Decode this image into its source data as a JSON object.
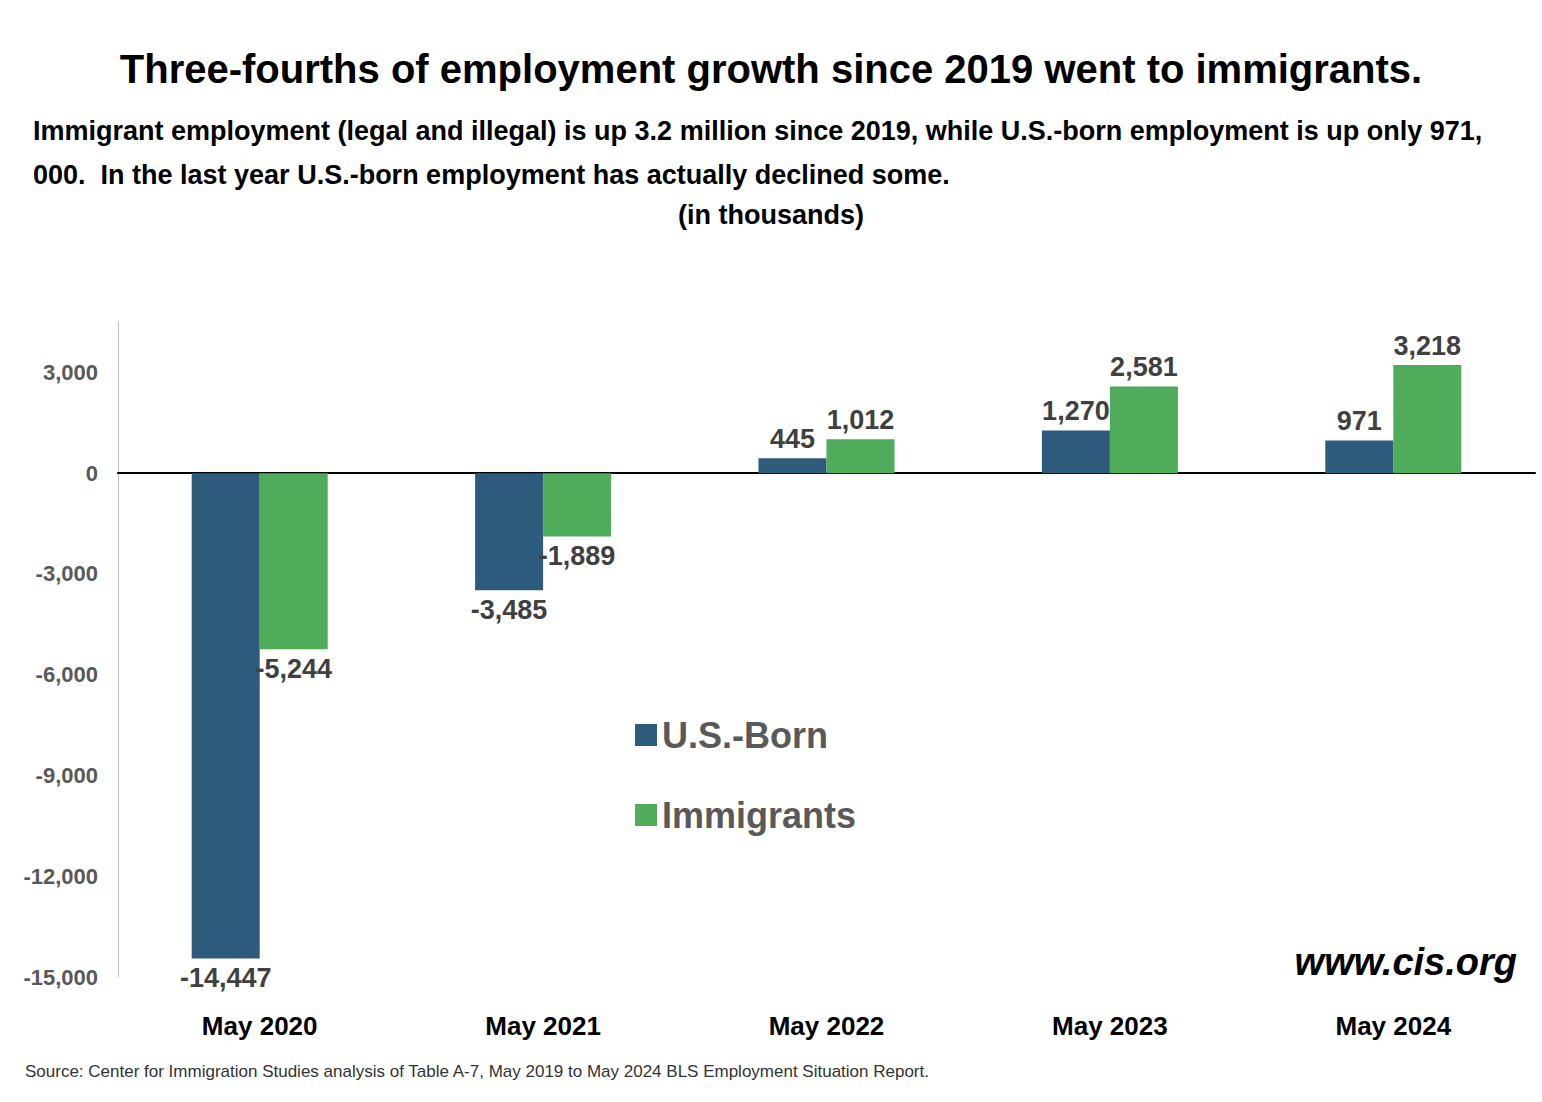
{
  "chart_data": {
    "type": "bar",
    "title": "Three-fourths of employment growth since 2019 went to immigrants.",
    "subtitle": "Immigrant employment (legal and illegal) is up 3.2 million since 2019, while U.S.-born employment is up only 971,000.  In the last year U.S.-born employment has actually declined some.",
    "note": "(in thousands)",
    "source": "Source: Center for Immigration Studies analysis of Table A-7, May 2019 to May 2024 BLS Employment Situation Report.",
    "annotations": [
      "www.cis.org"
    ],
    "categories": [
      "May 2020",
      "May 2021",
      "May 2022",
      "May 2023",
      "May 2024"
    ],
    "series": [
      {
        "name": "U.S.-Born",
        "color": "#2e5a7b",
        "values": [
          -14447,
          -3485,
          445,
          1270,
          971
        ],
        "value_labels": [
          "-14,447",
          "-3,485",
          "445",
          "1,270",
          "971"
        ]
      },
      {
        "name": "Immigrants",
        "color": "#4eac5b",
        "values": [
          -5244,
          -1889,
          1012,
          2581,
          3218
        ],
        "value_labels": [
          "-5,244",
          "-1,889",
          "1,012",
          "2,581",
          "3,218"
        ]
      }
    ],
    "ylim": [
      -15000,
      4500
    ],
    "yticks": [
      {
        "value": 3000,
        "label": "3,000"
      },
      0,
      {
        "value": -3000,
        "label": "-3,000"
      },
      {
        "value": -6000,
        "label": "-6,000"
      },
      {
        "value": -9000,
        "label": "-9,000"
      },
      {
        "value": -12000,
        "label": "-12,000"
      },
      {
        "value": -15000,
        "label": "-15,000"
      }
    ],
    "grid": false,
    "legend": "center",
    "data_labels": true
  }
}
